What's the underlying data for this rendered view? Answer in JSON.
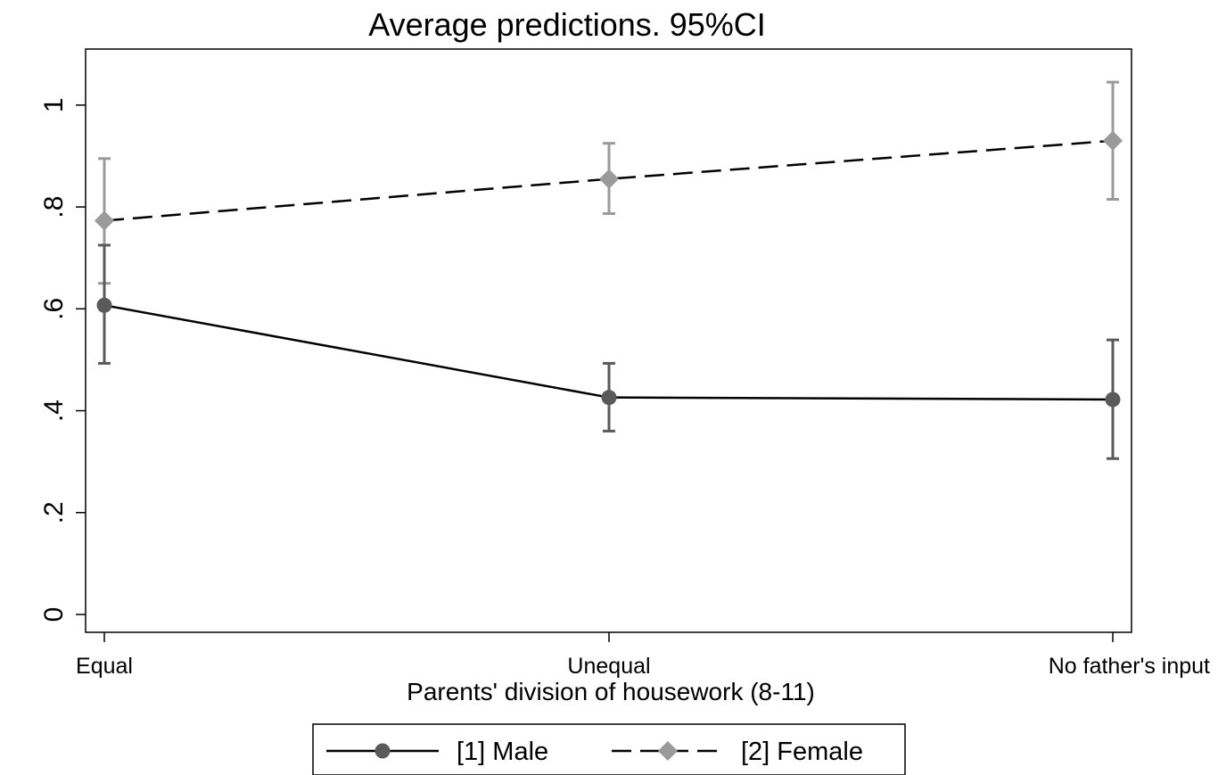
{
  "chart_data": {
    "type": "line",
    "title": "Average predictions. 95%CI",
    "xlabel": "Parents' division of housework (8-11)",
    "ylabel": "",
    "categories": [
      "Equal",
      "Unequal",
      "No father's input"
    ],
    "ylim": [
      -0.035,
      1.11
    ],
    "yticks": [
      0,
      0.2,
      0.4,
      0.6,
      0.8,
      1
    ],
    "ytick_labels": [
      "0",
      ".2",
      ".4",
      ".6",
      ".8",
      "1"
    ],
    "grid": false,
    "legend_position": "bottom",
    "series": [
      {
        "name": "[1] Male",
        "values": [
          0.607,
          0.426,
          0.422
        ],
        "ci_low": [
          0.493,
          0.36,
          0.306
        ],
        "ci_high": [
          0.725,
          0.493,
          0.539
        ],
        "color": "#5a5a5a",
        "line_style": "solid",
        "marker": "circle"
      },
      {
        "name": "[2] Female",
        "values": [
          0.773,
          0.855,
          0.93
        ],
        "ci_low": [
          0.65,
          0.787,
          0.815
        ],
        "ci_high": [
          0.895,
          0.925,
          1.045
        ],
        "color": "#9a9a9a",
        "line_style": "dashed",
        "marker": "diamond"
      }
    ]
  }
}
